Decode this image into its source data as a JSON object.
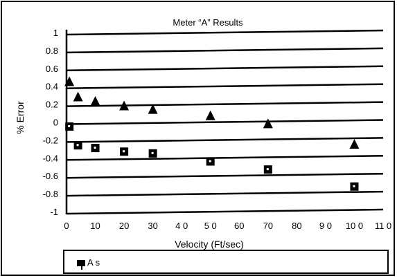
{
  "chart_data": {
    "type": "scatter",
    "title": "Meter “A” Results",
    "xlabel": "Velocity (Ft/sec)",
    "ylabel": "% Error",
    "xlim": [
      0,
      110
    ],
    "ylim": [
      -1,
      1
    ],
    "x_ticks": [
      "0",
      "10",
      "20",
      "30",
      "4 0",
      "5 0",
      "60",
      "70",
      "80",
      "9 0",
      "10 0",
      "11 0"
    ],
    "y_ticks": [
      "1",
      "0.8",
      "0.6",
      "0.4",
      "0.2",
      "0",
      "-0.2",
      "-0.4",
      "-0.6",
      "-0.8",
      "-1"
    ],
    "grid": "horizontal",
    "series": [
      {
        "marker": "triangle",
        "color": "#000000",
        "x": [
          1,
          4,
          10,
          20,
          30,
          50,
          70,
          100
        ],
        "y": [
          0.44,
          0.27,
          0.22,
          0.17,
          0.13,
          0.06,
          -0.03,
          -0.26
        ]
      },
      {
        "name": "A s",
        "marker": "square",
        "color": "#000000",
        "x": [
          1,
          4,
          10,
          20,
          30,
          50,
          70,
          100
        ],
        "y": [
          -0.05,
          -0.26,
          -0.29,
          -0.33,
          -0.35,
          -0.44,
          -0.53,
          -0.72
        ]
      }
    ],
    "legend": {
      "position": "bottom",
      "label": "A s"
    }
  }
}
